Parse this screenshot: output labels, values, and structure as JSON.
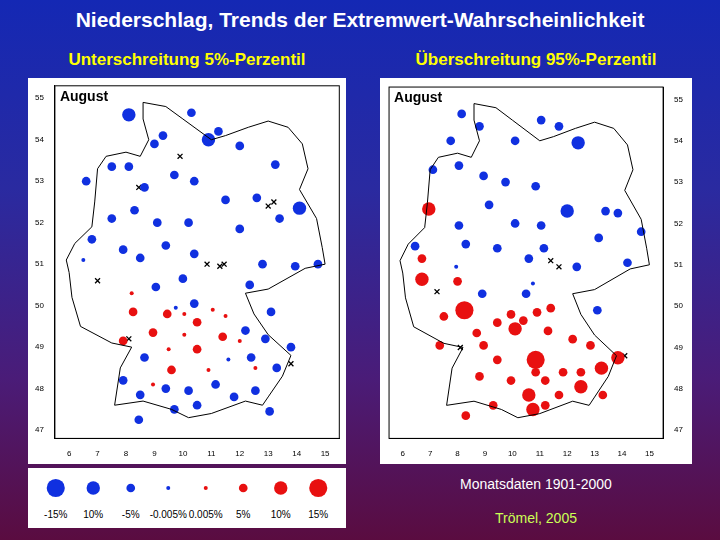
{
  "title": "Niederschlag, Trends der Extremwert-Wahrscheinlichkeit",
  "source": "Monatsdaten 1901-2000",
  "credit": "Trömel, 2005",
  "size_legend": {
    "values": [
      -15,
      10,
      -5,
      -0.005,
      0.005,
      5,
      10,
      15
    ],
    "labels": [
      "-15%",
      "10%",
      "-5%",
      "-0.005%",
      "0.005%",
      "5%",
      "10%",
      "15%"
    ],
    "colors": [
      "#1030e0",
      "#1030e0",
      "#1030e0",
      "#1030e0",
      "#e81010",
      "#e81010",
      "#e81010",
      "#e81010"
    ]
  },
  "chart_data": [
    {
      "type": "bubble",
      "title": "Unterschreitung 5%-Perzentil",
      "annotation": "August",
      "xlim": [
        5.5,
        15.5
      ],
      "ylim": [
        46.8,
        55.3
      ],
      "xticks": [
        6,
        7,
        8,
        9,
        10,
        11,
        12,
        13,
        14,
        15
      ],
      "yticks": [
        47,
        48,
        49,
        50,
        51,
        52,
        53,
        54,
        55
      ],
      "grid": false,
      "outline": {
        "x": [
          8.6,
          9.4,
          10.0,
          11.0,
          11.5,
          12.3,
          13.0,
          13.7,
          14.2,
          14.4,
          14.1,
          14.7,
          14.9,
          15.0,
          14.3,
          13.0,
          12.2,
          12.5,
          13.0,
          13.8,
          13.5,
          13.0,
          12.8,
          12.2,
          11.0,
          10.2,
          9.6,
          8.6,
          7.6,
          7.8,
          8.2,
          7.5,
          6.4,
          6.1,
          6.0,
          5.9,
          6.2,
          6.8,
          6.9,
          7.0,
          7.3,
          8.0,
          8.5,
          8.8,
          8.6,
          8.6
        ],
        "y": [
          54.9,
          54.8,
          54.5,
          54.0,
          54.1,
          54.3,
          54.45,
          54.3,
          53.9,
          53.3,
          52.8,
          52.1,
          51.4,
          51.0,
          50.9,
          50.4,
          50.3,
          49.8,
          49.3,
          48.8,
          48.3,
          47.8,
          47.6,
          47.7,
          47.4,
          47.3,
          47.5,
          47.7,
          47.6,
          48.5,
          49.0,
          49.1,
          49.5,
          50.2,
          50.8,
          51.1,
          51.5,
          51.9,
          52.5,
          53.3,
          53.6,
          53.7,
          53.6,
          54.0,
          54.5,
          54.9
        ]
      },
      "series": [
        {
          "color": "#1030e0",
          "marker": "circle",
          "x": [
            8.1,
            10.3,
            10.9,
            9.3,
            9.0,
            11.25,
            12.0,
            13.25,
            8.1,
            7.5,
            6.6,
            8.65,
            9.7,
            10.4,
            11.5,
            12.6,
            14.1,
            7.5,
            8.3,
            9.1,
            10.2,
            12.0,
            13.4,
            6.8,
            7.9,
            8.5,
            9.4,
            10.4,
            12.8,
            14.75,
            10.0,
            9.05,
            6.5,
            12.35,
            13.95,
            9.75,
            10.4,
            13.1,
            12.2,
            12.9,
            13.8,
            12.4,
            11.6,
            13.3,
            8.65,
            7.9,
            8.5,
            9.4,
            10.2,
            11.15,
            11.8,
            12.55,
            10.5,
            9.7,
            13.05,
            8.45
          ],
          "y": [
            54.6,
            54.65,
            54.0,
            54.1,
            53.9,
            54.2,
            53.85,
            53.4,
            53.35,
            53.35,
            53.0,
            52.85,
            53.15,
            53.0,
            52.55,
            52.6,
            52.35,
            52.1,
            52.3,
            52.0,
            52.0,
            51.85,
            52.1,
            51.6,
            51.35,
            51.15,
            51.45,
            51.25,
            51.0,
            51.0,
            50.65,
            50.45,
            51.1,
            50.5,
            50.95,
            49.95,
            50.05,
            49.85,
            49.4,
            49.2,
            49.0,
            48.75,
            48.7,
            48.5,
            48.75,
            48.2,
            47.85,
            48.0,
            47.95,
            48.1,
            47.8,
            47.95,
            47.6,
            47.5,
            47.45,
            47.25
          ],
          "size": [
            -10,
            -5,
            -10,
            -5,
            -5,
            -5,
            -5,
            -5,
            -5,
            -5,
            -5,
            -5,
            -5,
            -5,
            -5,
            -5,
            -10,
            -5,
            -5,
            -5,
            -5,
            -5,
            -5,
            -5,
            -5,
            -5,
            -5,
            -5,
            -5,
            -5,
            -5,
            -5,
            -0.005,
            -5,
            -5,
            -0.005,
            -5,
            -5,
            -5,
            -5,
            -5,
            -5,
            -0.005,
            -5,
            -5,
            -5,
            -5,
            -5,
            -5,
            -5,
            -5,
            -5,
            -5,
            -5,
            -5,
            -5
          ]
        },
        {
          "color": "#e81010",
          "marker": "circle",
          "x": [
            8.2,
            8.25,
            9.45,
            10.05,
            10.5,
            11.05,
            11.5,
            8.95,
            10.05,
            11.4,
            12.0,
            9.5,
            10.5,
            10.9,
            9.6,
            8.95,
            12.55,
            7.9
          ],
          "y": [
            50.3,
            49.85,
            49.8,
            49.8,
            49.6,
            49.9,
            49.75,
            49.35,
            49.3,
            49.25,
            49.15,
            48.95,
            48.95,
            48.45,
            48.45,
            48.1,
            48.5,
            49.15
          ],
          "size": [
            0.005,
            5,
            5,
            0.005,
            5,
            0.005,
            0.005,
            5,
            0.005,
            5,
            0.005,
            0.005,
            5,
            0.005,
            5,
            0.005,
            0.005,
            5
          ]
        },
        {
          "color": "#000000",
          "marker": "cross",
          "x": [
            9.9,
            8.45,
            13.0,
            13.2,
            10.85,
            11.3,
            11.45,
            7.0,
            8.1,
            13.8
          ],
          "y": [
            53.6,
            52.85,
            52.4,
            52.5,
            51.0,
            50.95,
            51.0,
            50.6,
            49.2,
            48.6
          ]
        }
      ]
    },
    {
      "type": "bubble",
      "title": "Überschreitung 95%-Perzentil",
      "annotation": "August",
      "xlim": [
        5.5,
        15.5
      ],
      "ylim": [
        46.8,
        55.3
      ],
      "xticks": [
        6,
        7,
        8,
        9,
        10,
        11,
        12,
        13,
        14,
        15
      ],
      "yticks": [
        47,
        48,
        49,
        50,
        51,
        52,
        53,
        54,
        55
      ],
      "grid": false,
      "outline": {
        "x": [
          8.6,
          9.4,
          10.0,
          11.0,
          11.5,
          12.3,
          13.0,
          13.7,
          14.2,
          14.4,
          14.1,
          14.7,
          14.9,
          15.0,
          14.3,
          13.0,
          12.2,
          12.5,
          13.0,
          13.8,
          13.5,
          13.0,
          12.8,
          12.2,
          11.0,
          10.2,
          9.6,
          8.6,
          7.6,
          7.8,
          8.2,
          7.5,
          6.4,
          6.1,
          6.0,
          5.9,
          6.2,
          6.8,
          6.9,
          7.0,
          7.3,
          8.0,
          8.5,
          8.8,
          8.6,
          8.6
        ],
        "y": [
          54.9,
          54.8,
          54.5,
          54.0,
          54.1,
          54.3,
          54.45,
          54.3,
          53.9,
          53.3,
          52.8,
          52.1,
          51.4,
          51.0,
          50.9,
          50.4,
          50.3,
          49.8,
          49.3,
          48.8,
          48.3,
          47.8,
          47.6,
          47.7,
          47.4,
          47.3,
          47.5,
          47.7,
          47.6,
          48.5,
          49.0,
          49.1,
          49.5,
          50.2,
          50.8,
          51.1,
          51.5,
          51.9,
          52.5,
          53.3,
          53.6,
          53.7,
          53.6,
          54.0,
          54.5,
          54.9
        ]
      },
      "series": [
        {
          "color": "#1030e0",
          "marker": "circle",
          "x": [
            8.15,
            8.8,
            11.05,
            11.7,
            10.1,
            12.4,
            7.75,
            8.05,
            7.1,
            8.95,
            9.75,
            10.85,
            12.0,
            13.4,
            13.85,
            9.15,
            8.05,
            10.1,
            11.05,
            13.15,
            14.7,
            9.45,
            11.15,
            10.6,
            12.35,
            14.2,
            6.45,
            8.3,
            10.5,
            10.75,
            13.1,
            7.95,
            8.9
          ],
          "y": [
            54.65,
            54.35,
            54.5,
            54.35,
            54.0,
            53.95,
            54.0,
            53.4,
            53.3,
            53.15,
            53.0,
            52.9,
            52.3,
            52.3,
            52.25,
            52.45,
            51.95,
            52.0,
            51.95,
            51.65,
            51.8,
            51.4,
            51.4,
            51.15,
            50.95,
            51.05,
            51.45,
            51.5,
            50.3,
            50.55,
            49.9,
            50.95,
            50.3
          ],
          "size": [
            -5,
            -5,
            -5,
            -5,
            -5,
            -10,
            -5,
            -5,
            -5,
            -5,
            -5,
            -5,
            -10,
            -5,
            -5,
            -5,
            -5,
            -5,
            -5,
            -5,
            -5,
            -5,
            -5,
            -5,
            -5,
            -5,
            -5,
            -5,
            -5,
            -0.005,
            -5,
            -0.005,
            -5
          ]
        },
        {
          "color": "#e81010",
          "marker": "circle",
          "x": [
            6.95,
            6.7,
            6.7,
            8.0,
            8.25,
            7.5,
            7.35,
            8.7,
            9.45,
            9.95,
            10.4,
            10.9,
            11.4,
            10.1,
            11.3,
            12.2,
            9.45,
            8.8,
            9.95,
            10.85,
            10.85,
            11.2,
            11.85,
            12.5,
            12.5,
            10.6,
            11.2,
            10.75,
            11.7,
            13.3,
            13.25,
            9.3,
            8.3,
            12.85,
            13.85,
            8.95
          ],
          "y": [
            52.35,
            51.15,
            50.65,
            50.6,
            49.9,
            49.75,
            49.05,
            49.35,
            49.6,
            49.8,
            49.65,
            49.85,
            49.95,
            49.45,
            49.4,
            49.2,
            48.7,
            48.3,
            48.2,
            48.7,
            48.4,
            48.2,
            48.4,
            48.4,
            48.05,
            47.85,
            47.6,
            47.5,
            47.85,
            47.85,
            48.5,
            47.6,
            47.35,
            49.05,
            48.75,
            49.05
          ],
          "size": [
            10,
            5,
            10,
            5,
            15,
            5,
            5,
            5,
            5,
            5,
            5,
            5,
            5,
            10,
            5,
            5,
            5,
            5,
            5,
            15,
            5,
            5,
            5,
            5,
            10,
            10,
            5,
            10,
            5,
            5,
            10,
            5,
            5,
            5,
            10,
            5
          ]
        },
        {
          "color": "#000000",
          "marker": "cross",
          "x": [
            7.25,
            8.1,
            11.4,
            11.7,
            14.1
          ],
          "y": [
            50.35,
            49.0,
            51.1,
            50.95,
            48.8
          ]
        }
      ]
    }
  ]
}
